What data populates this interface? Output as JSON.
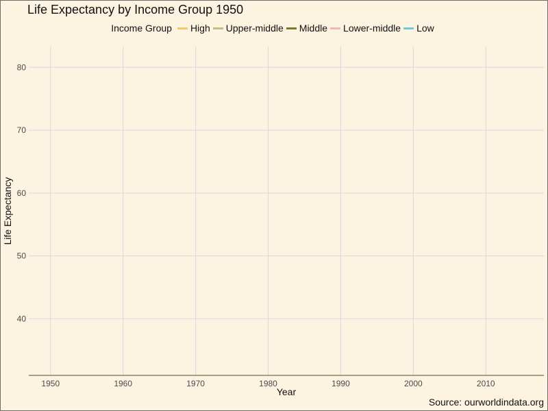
{
  "title": "Life Expectancy by Income Group 1950",
  "source": "Source: ourworldindata.org",
  "chart_data": {
    "type": "line",
    "title": "Life Expectancy by Income Group 1950",
    "xlabel": "Year",
    "ylabel": "Life Expectancy",
    "legend_title": "Income Group",
    "legend_position": "top",
    "grid": true,
    "xlim": [
      1947,
      2018
    ],
    "ylim": [
      31,
      83.3
    ],
    "x_ticks": [
      1950,
      1960,
      1970,
      1980,
      1990,
      2000,
      2010
    ],
    "y_ticks": [
      40,
      50,
      60,
      70,
      80
    ],
    "series": [
      {
        "name": "High",
        "color": "#f2c96d",
        "x": [],
        "y": []
      },
      {
        "name": "Upper-middle",
        "color": "#c9b98a",
        "x": [],
        "y": []
      },
      {
        "name": "Middle",
        "color": "#7d7a2c",
        "x": [],
        "y": []
      },
      {
        "name": "Lower-middle",
        "color": "#f2b8b5",
        "x": [],
        "y": []
      },
      {
        "name": "Low",
        "color": "#6ec9e0",
        "x": [],
        "y": []
      }
    ],
    "colors": {
      "background": "#fcf3e1",
      "grid": "#d6d9de",
      "axis": "#7a6a55"
    }
  }
}
